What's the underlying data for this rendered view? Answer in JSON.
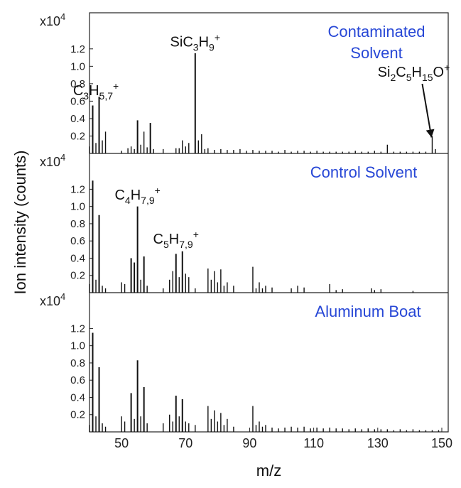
{
  "chart_data": {
    "type": "bar",
    "xlabel": "m/z",
    "ylabel": "Ion intensity (counts)",
    "xlim": [
      40,
      152
    ],
    "xticks": [
      "50",
      "70",
      "90",
      "110",
      "130",
      "150"
    ],
    "yticks": [
      "0.2",
      "0.4",
      "0.6",
      "0.8",
      "1.0",
      "1.2"
    ],
    "multiplier": {
      "base": "x10",
      "exp": "4"
    },
    "panels": [
      {
        "title": "Contaminated Solvent",
        "title_lines": [
          "Contaminated",
          "Solvent"
        ],
        "ylim": [
          0,
          1.5
        ],
        "annotations": [
          {
            "text": "C3H5,7+",
            "parts": [
              [
                "C",
                ""
              ],
              [
                "3",
                "sub"
              ],
              [
                "H",
                ""
              ],
              [
                "5,7",
                "sub"
              ],
              [
                "+",
                "sup"
              ]
            ],
            "x": 42,
            "y": 0.62
          },
          {
            "text": "SiC3H9+",
            "parts": [
              [
                "SiC",
                ""
              ],
              [
                "3",
                "sub"
              ],
              [
                "H",
                ""
              ],
              [
                "9",
                "sub"
              ],
              [
                "+",
                "sup"
              ]
            ],
            "x": 73,
            "y": 1.18
          },
          {
            "text": "Si2C5H15O+",
            "parts": [
              [
                "Si",
                ""
              ],
              [
                "2",
                "sub"
              ],
              [
                "C",
                ""
              ],
              [
                "5",
                "sub"
              ],
              [
                "H",
                ""
              ],
              [
                "15",
                "sub"
              ],
              [
                "O",
                ""
              ],
              [
                "+",
                "sup"
              ]
            ],
            "x": 147,
            "y": 0.2,
            "arrow": true
          }
        ],
        "x": [
          40,
          41,
          42,
          43,
          44,
          45,
          50,
          52,
          53,
          54,
          55,
          56,
          57,
          58,
          59,
          60,
          63,
          67,
          68,
          69,
          70,
          71,
          73,
          74,
          75,
          76,
          77,
          79,
          81,
          83,
          85,
          87,
          89,
          91,
          93,
          95,
          97,
          99,
          101,
          103,
          105,
          107,
          109,
          111,
          113,
          115,
          117,
          119,
          121,
          123,
          125,
          127,
          129,
          131,
          133,
          135,
          137,
          139,
          141,
          143,
          145,
          147,
          148
        ],
        "y": [
          0.08,
          0.55,
          0.12,
          0.65,
          0.15,
          0.25,
          0.03,
          0.06,
          0.08,
          0.05,
          0.38,
          0.1,
          0.25,
          0.07,
          0.35,
          0.05,
          0.05,
          0.06,
          0.06,
          0.15,
          0.08,
          0.12,
          1.15,
          0.15,
          0.22,
          0.05,
          0.06,
          0.04,
          0.05,
          0.04,
          0.04,
          0.05,
          0.03,
          0.04,
          0.03,
          0.03,
          0.03,
          0.02,
          0.04,
          0.02,
          0.03,
          0.03,
          0.02,
          0.03,
          0.02,
          0.02,
          0.02,
          0.02,
          0.02,
          0.03,
          0.02,
          0.02,
          0.03,
          0.02,
          0.1,
          0.02,
          0.02,
          0.02,
          0.02,
          0.02,
          0.02,
          0.2,
          0.05
        ]
      },
      {
        "title": "Control Solvent",
        "title_lines": [
          "Control Solvent"
        ],
        "ylim": [
          0,
          1.5
        ],
        "annotations": [
          {
            "text": "C4H7,9+",
            "parts": [
              [
                "C",
                ""
              ],
              [
                "4",
                "sub"
              ],
              [
                "H",
                ""
              ],
              [
                "7,9",
                "sub"
              ],
              [
                "+",
                "sup"
              ]
            ],
            "x": 55,
            "y": 1.03
          },
          {
            "text": "C5H7,9+",
            "parts": [
              [
                "C",
                ""
              ],
              [
                "5",
                "sub"
              ],
              [
                "H",
                ""
              ],
              [
                "7,9",
                "sub"
              ],
              [
                "+",
                "sup"
              ]
            ],
            "x": 67,
            "y": 0.52
          }
        ],
        "x": [
          40,
          41,
          42,
          43,
          44,
          45,
          50,
          51,
          53,
          54,
          55,
          56,
          57,
          58,
          63,
          65,
          66,
          67,
          68,
          69,
          70,
          71,
          73,
          77,
          78,
          79,
          80,
          81,
          82,
          83,
          85,
          91,
          92,
          93,
          94,
          95,
          97,
          103,
          105,
          107,
          115,
          117,
          119,
          128,
          129,
          131,
          141
        ],
        "y": [
          0.1,
          1.3,
          0.15,
          0.9,
          0.08,
          0.05,
          0.12,
          0.1,
          0.4,
          0.35,
          1.0,
          0.15,
          0.42,
          0.08,
          0.05,
          0.15,
          0.25,
          0.45,
          0.18,
          0.48,
          0.22,
          0.18,
          0.05,
          0.28,
          0.15,
          0.25,
          0.12,
          0.27,
          0.08,
          0.12,
          0.08,
          0.3,
          0.05,
          0.12,
          0.05,
          0.08,
          0.06,
          0.05,
          0.08,
          0.06,
          0.1,
          0.03,
          0.04,
          0.05,
          0.03,
          0.04,
          0.02
        ]
      },
      {
        "title": "Aluminum Boat",
        "title_lines": [
          "Aluminum Boat"
        ],
        "ylim": [
          0,
          1.5
        ],
        "annotations": [],
        "x": [
          40,
          41,
          42,
          43,
          44,
          45,
          50,
          51,
          53,
          54,
          55,
          56,
          57,
          58,
          63,
          65,
          66,
          67,
          68,
          69,
          70,
          71,
          73,
          77,
          78,
          79,
          80,
          81,
          82,
          83,
          85,
          91,
          92,
          93,
          94,
          95,
          97,
          99,
          101,
          103,
          105,
          107,
          109,
          111,
          113,
          115,
          117,
          119,
          121,
          123,
          125,
          127,
          129,
          131,
          133,
          135,
          137,
          139,
          141,
          143,
          145,
          147,
          149
        ],
        "y": [
          0.08,
          1.15,
          0.18,
          0.75,
          0.1,
          0.06,
          0.18,
          0.12,
          0.45,
          0.15,
          0.83,
          0.18,
          0.52,
          0.1,
          0.1,
          0.2,
          0.12,
          0.42,
          0.18,
          0.38,
          0.12,
          0.1,
          0.08,
          0.3,
          0.15,
          0.25,
          0.12,
          0.22,
          0.08,
          0.15,
          0.06,
          0.3,
          0.08,
          0.12,
          0.06,
          0.08,
          0.05,
          0.04,
          0.05,
          0.06,
          0.05,
          0.06,
          0.04,
          0.05,
          0.04,
          0.05,
          0.04,
          0.04,
          0.03,
          0.04,
          0.03,
          0.04,
          0.03,
          0.03,
          0.03,
          0.02,
          0.03,
          0.02,
          0.03,
          0.02,
          0.02,
          0.02,
          0.02
        ]
      }
    ]
  }
}
